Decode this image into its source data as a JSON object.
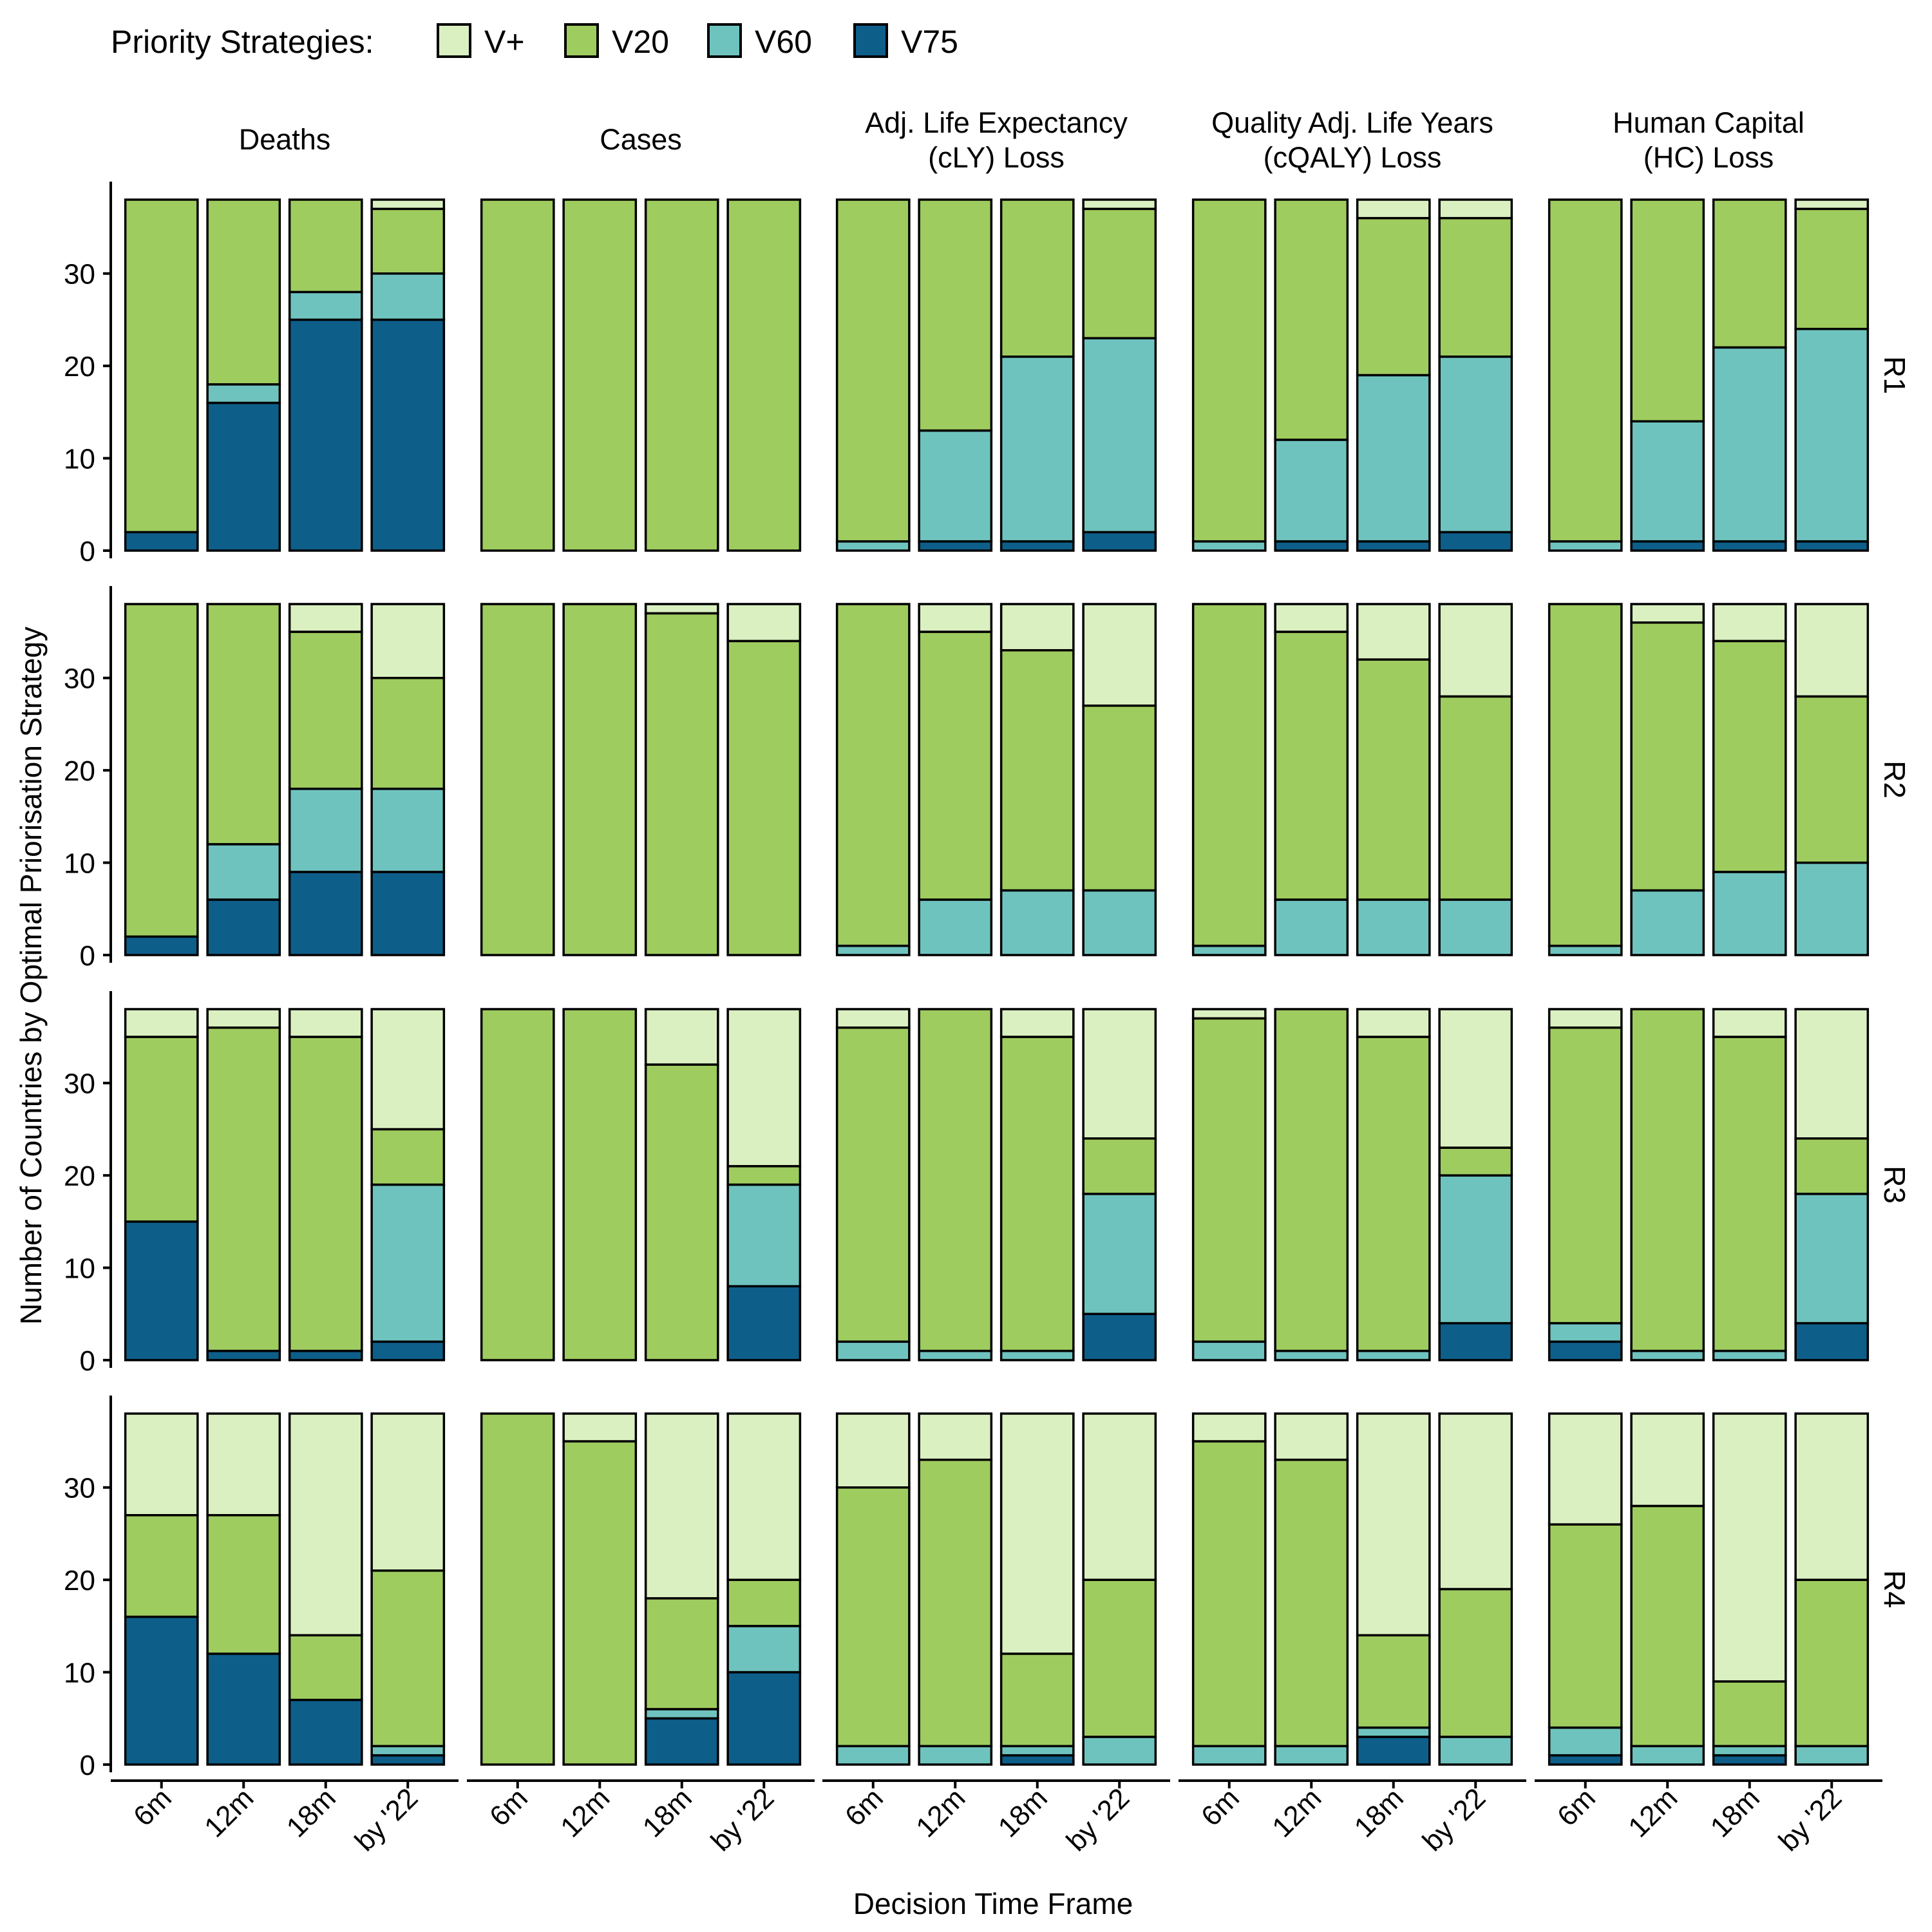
{
  "chart_data": {
    "type": "bar",
    "stacked": true,
    "legend": {
      "title": "Priority Strategies:",
      "entries": [
        "V+",
        "V20",
        "V60",
        "V75"
      ],
      "placement": "top-left"
    },
    "colors": {
      "V+": "#DAF0C1",
      "V20": "#9FCC5F",
      "V60": "#6FC3BF",
      "V75": "#0E5E8A"
    },
    "metrics": [
      "Deaths",
      "Cases",
      "Adj. Life Expectancy\n(cLY) Loss",
      "Quality Adj. Life Years\n(cQALY) Loss",
      "Human Capital\n(HC) Loss"
    ],
    "rows": [
      "R1",
      "R2",
      "R3",
      "R4"
    ],
    "categories": [
      "6m",
      "12m",
      "18m",
      "by '22"
    ],
    "stack_order": [
      "V75",
      "V60",
      "V20",
      "V+"
    ],
    "ylim": [
      0,
      38
    ],
    "yticks": [
      0,
      10,
      20,
      30
    ],
    "xlabel": "Decision Time Frame",
    "ylabel": "Number of Countries by Optimal Priorisation Strategy",
    "panels": [
      [
        [
          [
            2,
            0,
            36,
            0
          ],
          [
            16,
            2,
            20,
            0
          ],
          [
            25,
            3,
            10,
            0
          ],
          [
            25,
            5,
            7,
            1
          ]
        ],
        [
          [
            0,
            0,
            38,
            0
          ],
          [
            0,
            0,
            38,
            0
          ],
          [
            0,
            0,
            38,
            0
          ],
          [
            0,
            0,
            38,
            0
          ]
        ],
        [
          [
            0,
            1,
            37,
            0
          ],
          [
            1,
            12,
            25,
            0
          ],
          [
            1,
            20,
            17,
            0
          ],
          [
            2,
            21,
            14,
            1
          ]
        ],
        [
          [
            0,
            1,
            37,
            0
          ],
          [
            1,
            11,
            26,
            0
          ],
          [
            1,
            18,
            17,
            2
          ],
          [
            2,
            19,
            15,
            2
          ]
        ],
        [
          [
            0,
            1,
            37,
            0
          ],
          [
            1,
            13,
            24,
            0
          ],
          [
            1,
            21,
            16,
            0
          ],
          [
            1,
            23,
            13,
            1
          ]
        ]
      ],
      [
        [
          [
            2,
            0,
            36,
            0
          ],
          [
            6,
            6,
            26,
            0
          ],
          [
            9,
            9,
            17,
            3
          ],
          [
            9,
            9,
            12,
            8
          ]
        ],
        [
          [
            0,
            0,
            38,
            0
          ],
          [
            0,
            0,
            38,
            0
          ],
          [
            0,
            0,
            37,
            1
          ],
          [
            0,
            0,
            34,
            4
          ]
        ],
        [
          [
            0,
            1,
            37,
            0
          ],
          [
            0,
            6,
            29,
            3
          ],
          [
            0,
            7,
            26,
            5
          ],
          [
            0,
            7,
            20,
            11
          ]
        ],
        [
          [
            0,
            1,
            37,
            0
          ],
          [
            0,
            6,
            29,
            3
          ],
          [
            0,
            6,
            26,
            6
          ],
          [
            0,
            6,
            22,
            10
          ]
        ],
        [
          [
            0,
            1,
            37,
            0
          ],
          [
            0,
            7,
            29,
            2
          ],
          [
            0,
            9,
            25,
            4
          ],
          [
            0,
            10,
            18,
            10
          ]
        ]
      ],
      [
        [
          [
            15,
            0,
            20,
            3
          ],
          [
            1,
            0,
            35,
            2
          ],
          [
            1,
            0,
            34,
            3
          ],
          [
            2,
            17,
            6,
            13
          ]
        ],
        [
          [
            0,
            0,
            38,
            0
          ],
          [
            0,
            0,
            38,
            0
          ],
          [
            0,
            0,
            32,
            6
          ],
          [
            8,
            11,
            2,
            17
          ]
        ],
        [
          [
            0,
            2,
            34,
            2
          ],
          [
            0,
            1,
            37,
            0
          ],
          [
            0,
            1,
            34,
            3
          ],
          [
            5,
            13,
            6,
            14
          ]
        ],
        [
          [
            0,
            2,
            35,
            1
          ],
          [
            0,
            1,
            37,
            0
          ],
          [
            0,
            1,
            34,
            3
          ],
          [
            4,
            16,
            3,
            15
          ]
        ],
        [
          [
            2,
            2,
            32,
            2
          ],
          [
            0,
            1,
            37,
            0
          ],
          [
            0,
            1,
            34,
            3
          ],
          [
            4,
            14,
            6,
            14
          ]
        ]
      ],
      [
        [
          [
            16,
            0,
            11,
            11
          ],
          [
            12,
            0,
            15,
            11
          ],
          [
            7,
            0,
            7,
            24
          ],
          [
            1,
            1,
            19,
            17
          ]
        ],
        [
          [
            0,
            0,
            38,
            0
          ],
          [
            0,
            0,
            35,
            3
          ],
          [
            5,
            1,
            12,
            20
          ],
          [
            10,
            5,
            5,
            18
          ]
        ],
        [
          [
            0,
            2,
            28,
            8
          ],
          [
            0,
            2,
            31,
            5
          ],
          [
            1,
            1,
            10,
            26
          ],
          [
            0,
            3,
            17,
            18
          ]
        ],
        [
          [
            0,
            2,
            33,
            3
          ],
          [
            0,
            2,
            31,
            5
          ],
          [
            3,
            1,
            10,
            24
          ],
          [
            0,
            3,
            16,
            19
          ]
        ],
        [
          [
            1,
            3,
            22,
            12
          ],
          [
            0,
            2,
            26,
            10
          ],
          [
            1,
            1,
            7,
            29
          ],
          [
            0,
            2,
            18,
            18
          ]
        ]
      ]
    ]
  }
}
